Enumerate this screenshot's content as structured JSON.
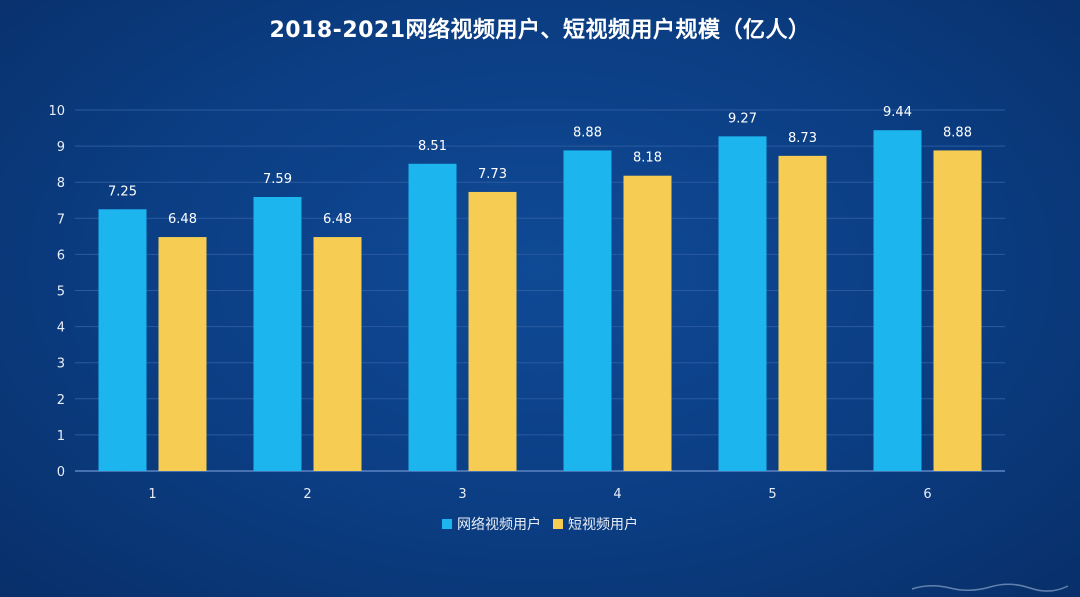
{
  "chart_data": {
    "type": "bar",
    "title": "2018-2021网络视频用户、短视频用户规模（亿人）",
    "categories": [
      "1",
      "2",
      "3",
      "4",
      "5",
      "6"
    ],
    "series": [
      {
        "name": "网络视频用户",
        "values": [
          7.25,
          7.59,
          8.51,
          8.88,
          9.27,
          9.44
        ],
        "color": "#1cb5ee"
      },
      {
        "name": "短视频用户",
        "values": [
          6.48,
          6.48,
          7.73,
          8.18,
          8.73,
          8.88
        ],
        "color": "#f6cd52"
      }
    ],
    "ylim": [
      0,
      10
    ],
    "yticks": [
      "0",
      "1",
      "2",
      "3",
      "4",
      "5",
      "6",
      "7",
      "8",
      "9",
      "10"
    ],
    "grid": true,
    "legend_position": "bottom"
  },
  "colors": {
    "background": "#0b3d82",
    "grid": "#2a5aa0",
    "axis": "#5b84c4",
    "label": "#e8eef8"
  }
}
